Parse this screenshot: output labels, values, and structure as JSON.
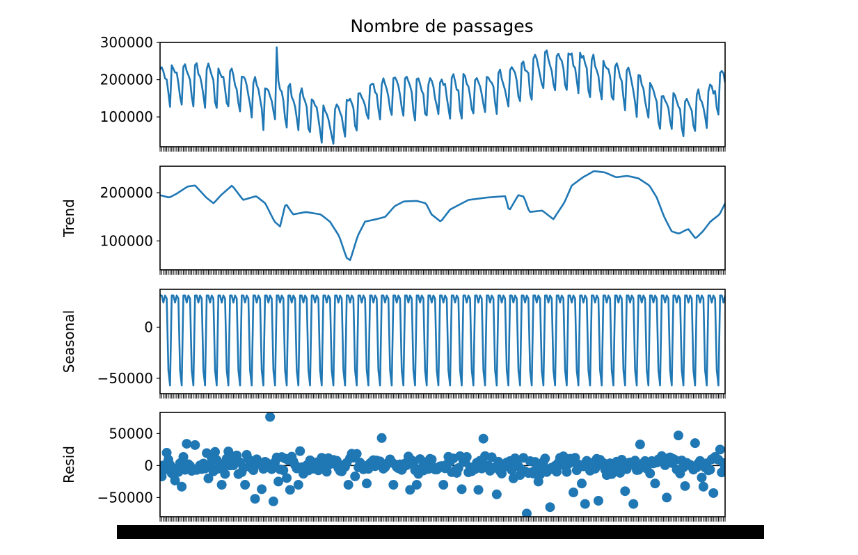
{
  "chart_data": {
    "type": "line",
    "title": "Nombre de passages",
    "n_points": 340,
    "seasonal_period": 7,
    "x_tick_label_note": "dense overlapping date labels (illegible)",
    "series_color": "#1f77b4",
    "panels": [
      {
        "id": "observed",
        "ylabel": "",
        "kind": "line",
        "ylim": [
          20000,
          300000
        ],
        "yticks": [
          100000,
          200000,
          300000
        ],
        "ytick_labels": [
          "100000",
          "200000",
          "300000"
        ],
        "level_anchors": [
          [
            0,
            200000
          ],
          [
            25,
            200000
          ],
          [
            40,
            185000
          ],
          [
            55,
            170000
          ],
          [
            65,
            145000
          ],
          [
            70,
            160000
          ],
          [
            78,
            140000
          ],
          [
            90,
            120000
          ],
          [
            100,
            80000
          ],
          [
            110,
            105000
          ],
          [
            125,
            150000
          ],
          [
            140,
            170000
          ],
          [
            160,
            160000
          ],
          [
            180,
            170000
          ],
          [
            200,
            175000
          ],
          [
            215,
            200000
          ],
          [
            230,
            230000
          ],
          [
            250,
            235000
          ],
          [
            265,
            210000
          ],
          [
            280,
            190000
          ],
          [
            290,
            160000
          ],
          [
            300,
            130000
          ],
          [
            310,
            120000
          ],
          [
            320,
            115000
          ],
          [
            330,
            150000
          ],
          [
            339,
            190000
          ]
        ],
        "weekly_pattern": [
          40000,
          45000,
          30000,
          15000,
          -5000,
          -50000,
          -75000
        ]
      },
      {
        "id": "trend",
        "ylabel": "Trend",
        "kind": "line",
        "ylim": [
          40000,
          255000
        ],
        "yticks": [
          100000,
          200000
        ],
        "ytick_labels": [
          "100000",
          "200000"
        ],
        "anchors": [
          [
            3,
            195000
          ],
          [
            8,
            190000
          ],
          [
            12,
            198000
          ],
          [
            18,
            213000
          ],
          [
            22,
            215000
          ],
          [
            28,
            190000
          ],
          [
            32,
            178000
          ],
          [
            36,
            195000
          ],
          [
            42,
            215000
          ],
          [
            48,
            185000
          ],
          [
            55,
            193000
          ],
          [
            60,
            178000
          ],
          [
            65,
            140000
          ],
          [
            68,
            130000
          ],
          [
            71,
            178000
          ],
          [
            75,
            155000
          ],
          [
            82,
            160000
          ],
          [
            90,
            155000
          ],
          [
            95,
            140000
          ],
          [
            100,
            110000
          ],
          [
            104,
            65000
          ],
          [
            106,
            60000
          ],
          [
            110,
            110000
          ],
          [
            114,
            140000
          ],
          [
            120,
            145000
          ],
          [
            125,
            150000
          ],
          [
            130,
            172000
          ],
          [
            135,
            182000
          ],
          [
            142,
            183000
          ],
          [
            147,
            178000
          ],
          [
            150,
            155000
          ],
          [
            155,
            140000
          ],
          [
            160,
            165000
          ],
          [
            170,
            185000
          ],
          [
            180,
            190000
          ],
          [
            190,
            193000
          ],
          [
            192,
            162000
          ],
          [
            197,
            195000
          ],
          [
            200,
            192000
          ],
          [
            203,
            160000
          ],
          [
            210,
            163000
          ],
          [
            216,
            145000
          ],
          [
            222,
            180000
          ],
          [
            226,
            215000
          ],
          [
            232,
            232000
          ],
          [
            238,
            245000
          ],
          [
            244,
            242000
          ],
          [
            250,
            232000
          ],
          [
            256,
            235000
          ],
          [
            262,
            230000
          ],
          [
            268,
            215000
          ],
          [
            272,
            190000
          ],
          [
            276,
            150000
          ],
          [
            280,
            120000
          ],
          [
            284,
            115000
          ],
          [
            289,
            125000
          ],
          [
            293,
            105000
          ],
          [
            297,
            120000
          ],
          [
            301,
            140000
          ],
          [
            306,
            155000
          ],
          [
            309,
            178000
          ]
        ]
      },
      {
        "id": "seasonal",
        "ylabel": "Seasonal",
        "kind": "line",
        "ylim": [
          -65000,
          37000
        ],
        "yticks": [
          -50000,
          0
        ],
        "ytick_labels": [
          "−50000",
          "0"
        ],
        "pattern": [
          31000,
          31000,
          24000,
          31000,
          28000,
          -42000,
          -57000
        ]
      },
      {
        "id": "resid",
        "ylabel": "Resid",
        "kind": "scatter",
        "ylim": [
          -80000,
          83000
        ],
        "yticks": [
          -50000,
          0,
          50000
        ],
        "ytick_labels": [
          "−50000",
          "0",
          "50000"
        ],
        "outliers": [
          [
            5,
            20000
          ],
          [
            18,
            -33000
          ],
          [
            22,
            34000
          ],
          [
            30,
            32000
          ],
          [
            52,
            -30000
          ],
          [
            58,
            22000
          ],
          [
            72,
            -30000
          ],
          [
            80,
            -52000
          ],
          [
            86,
            -37000
          ],
          [
            94,
            76000
          ],
          [
            96,
            -56000
          ],
          [
            100,
            -25000
          ],
          [
            110,
            -38000
          ],
          [
            118,
            -30000
          ],
          [
            160,
            -30000
          ],
          [
            176,
            -28000
          ],
          [
            189,
            43000
          ],
          [
            198,
            -30000
          ],
          [
            212,
            -38000
          ],
          [
            218,
            -30000
          ],
          [
            240,
            -30000
          ],
          [
            256,
            -37000
          ],
          [
            270,
            -38000
          ],
          [
            274,
            42000
          ],
          [
            286,
            -45000
          ],
          [
            300,
            -20000
          ],
          [
            311,
            -75000
          ],
          [
            321,
            -25000
          ],
          [
            332,
            -65000
          ],
          [
            345,
            -10000
          ],
          [
            351,
            -42000
          ],
          [
            358,
            -28000
          ],
          [
            361,
            -60000
          ],
          [
            372,
            -55000
          ],
          [
            395,
            -40000
          ],
          [
            402,
            -60000
          ],
          [
            408,
            33000
          ],
          [
            420,
            -28000
          ],
          [
            430,
            -50000
          ],
          [
            440,
            47000
          ],
          [
            446,
            -32000
          ],
          [
            455,
            35000
          ],
          [
            462,
            -33000
          ],
          [
            470,
            -43000
          ],
          [
            476,
            25000
          ]
        ]
      }
    ]
  }
}
